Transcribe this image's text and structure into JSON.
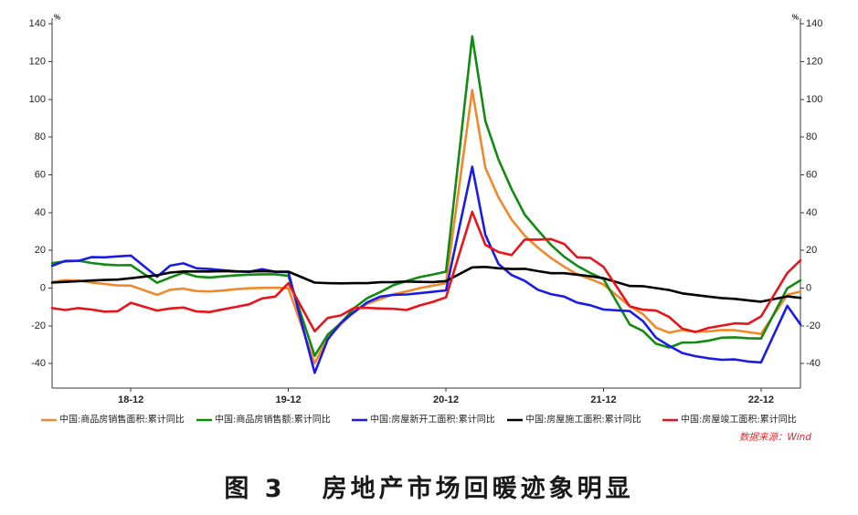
{
  "chart_data": {
    "type": "line",
    "figure_label": "图 3",
    "title": "房地产市场回暖迹象明显",
    "y_unit": "%",
    "xlim": [
      "2018-06",
      "2023-03"
    ],
    "ylim": [
      -53,
      143
    ],
    "grid": false,
    "legend_position": "bottom",
    "y_ticks": [
      140,
      120,
      100,
      80,
      60,
      40,
      20,
      0,
      -20,
      -40
    ],
    "x_ticks": [
      {
        "date": "2018-12",
        "label": "18-12"
      },
      {
        "date": "2019-12",
        "label": "19-12"
      },
      {
        "date": "2020-12",
        "label": "20-12"
      },
      {
        "date": "2021-12",
        "label": "21-12"
      },
      {
        "date": "2022-12",
        "label": "22-12"
      }
    ],
    "x": [
      "2018-06",
      "2018-07",
      "2018-08",
      "2018-09",
      "2018-10",
      "2018-11",
      "2018-12",
      "2019-02",
      "2019-03",
      "2019-04",
      "2019-05",
      "2019-06",
      "2019-07",
      "2019-08",
      "2019-09",
      "2019-10",
      "2019-11",
      "2019-12",
      "2020-02",
      "2020-03",
      "2020-04",
      "2020-05",
      "2020-06",
      "2020-07",
      "2020-08",
      "2020-09",
      "2020-10",
      "2020-11",
      "2020-12",
      "2021-02",
      "2021-03",
      "2021-04",
      "2021-05",
      "2021-06",
      "2021-07",
      "2021-08",
      "2021-09",
      "2021-10",
      "2021-11",
      "2021-12",
      "2022-02",
      "2022-03",
      "2022-04",
      "2022-05",
      "2022-06",
      "2022-07",
      "2022-08",
      "2022-09",
      "2022-10",
      "2022-11",
      "2022-12",
      "2023-02",
      "2023-03"
    ],
    "series": [
      {
        "name": "中国:商品房销售面积:累计同比",
        "color": "#F0892B",
        "values": [
          3.3,
          4.2,
          4.0,
          2.9,
          2.2,
          1.4,
          1.3,
          -3.6,
          -0.9,
          -0.3,
          -1.6,
          -1.8,
          -1.3,
          -0.6,
          -0.1,
          0.1,
          0.2,
          -0.1,
          -39.9,
          -26.3,
          -19.3,
          -12.3,
          -8.4,
          -5.8,
          -3.3,
          -1.8,
          0.0,
          1.3,
          2.6,
          104.9,
          63.8,
          48.1,
          36.3,
          27.7,
          21.5,
          15.9,
          11.3,
          7.3,
          4.8,
          1.9,
          -9.6,
          -13.8,
          -20.9,
          -23.6,
          -22.2,
          -23.1,
          -23.0,
          -22.2,
          -22.3,
          -23.3,
          -24.3,
          -3.6,
          -1.8
        ]
      },
      {
        "name": "中国:商品房销售额:累计同比",
        "color": "#138A13",
        "values": [
          13.2,
          14.1,
          14.5,
          13.3,
          12.5,
          12.1,
          12.2,
          2.8,
          5.6,
          8.1,
          6.1,
          5.6,
          6.2,
          6.7,
          7.1,
          7.3,
          7.3,
          6.5,
          -35.9,
          -24.7,
          -18.6,
          -10.6,
          -5.4,
          -2.1,
          1.6,
          3.7,
          5.8,
          7.2,
          8.7,
          133.4,
          88.5,
          68.2,
          52.4,
          38.9,
          30.7,
          22.9,
          16.6,
          11.8,
          8.0,
          4.8,
          -19.3,
          -22.7,
          -29.5,
          -31.5,
          -28.9,
          -28.8,
          -27.9,
          -26.3,
          -26.1,
          -26.6,
          -26.7,
          -0.1,
          4.1
        ]
      },
      {
        "name": "中国:房屋新开工面积:累计同比",
        "color": "#1B1BE6",
        "values": [
          11.8,
          14.4,
          14.4,
          16.4,
          16.3,
          16.8,
          17.2,
          6.0,
          11.9,
          13.1,
          10.5,
          10.1,
          9.5,
          8.9,
          8.6,
          10.0,
          8.6,
          8.5,
          -44.9,
          -27.2,
          -18.4,
          -12.8,
          -7.6,
          -4.5,
          -3.6,
          -3.4,
          -2.7,
          -2.0,
          -1.2,
          64.3,
          28.2,
          12.8,
          6.9,
          3.8,
          -0.9,
          -3.2,
          -4.5,
          -7.7,
          -9.1,
          -11.4,
          -12.2,
          -17.5,
          -26.3,
          -30.6,
          -34.4,
          -36.1,
          -37.2,
          -38.0,
          -37.8,
          -38.9,
          -39.4,
          -9.4,
          -19.2
        ]
      },
      {
        "name": "中国:房屋施工面积:累计同比",
        "color": "#000000",
        "values": [
          2.9,
          3.3,
          3.6,
          4.0,
          4.3,
          4.5,
          5.2,
          6.8,
          8.2,
          8.8,
          8.8,
          8.8,
          9.0,
          8.8,
          8.7,
          9.0,
          8.7,
          8.7,
          2.9,
          2.6,
          2.5,
          2.6,
          2.6,
          3.1,
          3.2,
          3.5,
          3.3,
          3.2,
          3.7,
          11.0,
          11.2,
          10.5,
          10.1,
          10.2,
          9.0,
          7.9,
          7.9,
          7.1,
          6.3,
          5.2,
          1.1,
          1.0,
          0.0,
          -1.0,
          -2.8,
          -3.7,
          -4.5,
          -5.3,
          -5.7,
          -6.5,
          -7.2,
          -4.4,
          -5.2
        ]
      },
      {
        "name": "中国:房屋竣工面积:累计同比",
        "color": "#E8141B",
        "values": [
          -10.6,
          -11.6,
          -10.6,
          -11.4,
          -12.5,
          -12.3,
          -7.8,
          -11.9,
          -10.8,
          -10.3,
          -12.4,
          -12.7,
          -11.3,
          -10.0,
          -8.6,
          -5.5,
          -4.5,
          2.6,
          -22.9,
          -15.8,
          -14.5,
          -10.5,
          -10.5,
          -10.8,
          -11.0,
          -11.6,
          -9.2,
          -7.3,
          -4.9,
          40.4,
          22.9,
          19.1,
          17.5,
          25.7,
          25.7,
          26.0,
          23.4,
          16.3,
          16.0,
          11.2,
          -9.7,
          -11.5,
          -11.9,
          -15.3,
          -21.5,
          -23.3,
          -21.1,
          -19.9,
          -18.7,
          -19.0,
          -15.0,
          8.0,
          14.7
        ]
      }
    ]
  },
  "source": "数据来源：Wind"
}
